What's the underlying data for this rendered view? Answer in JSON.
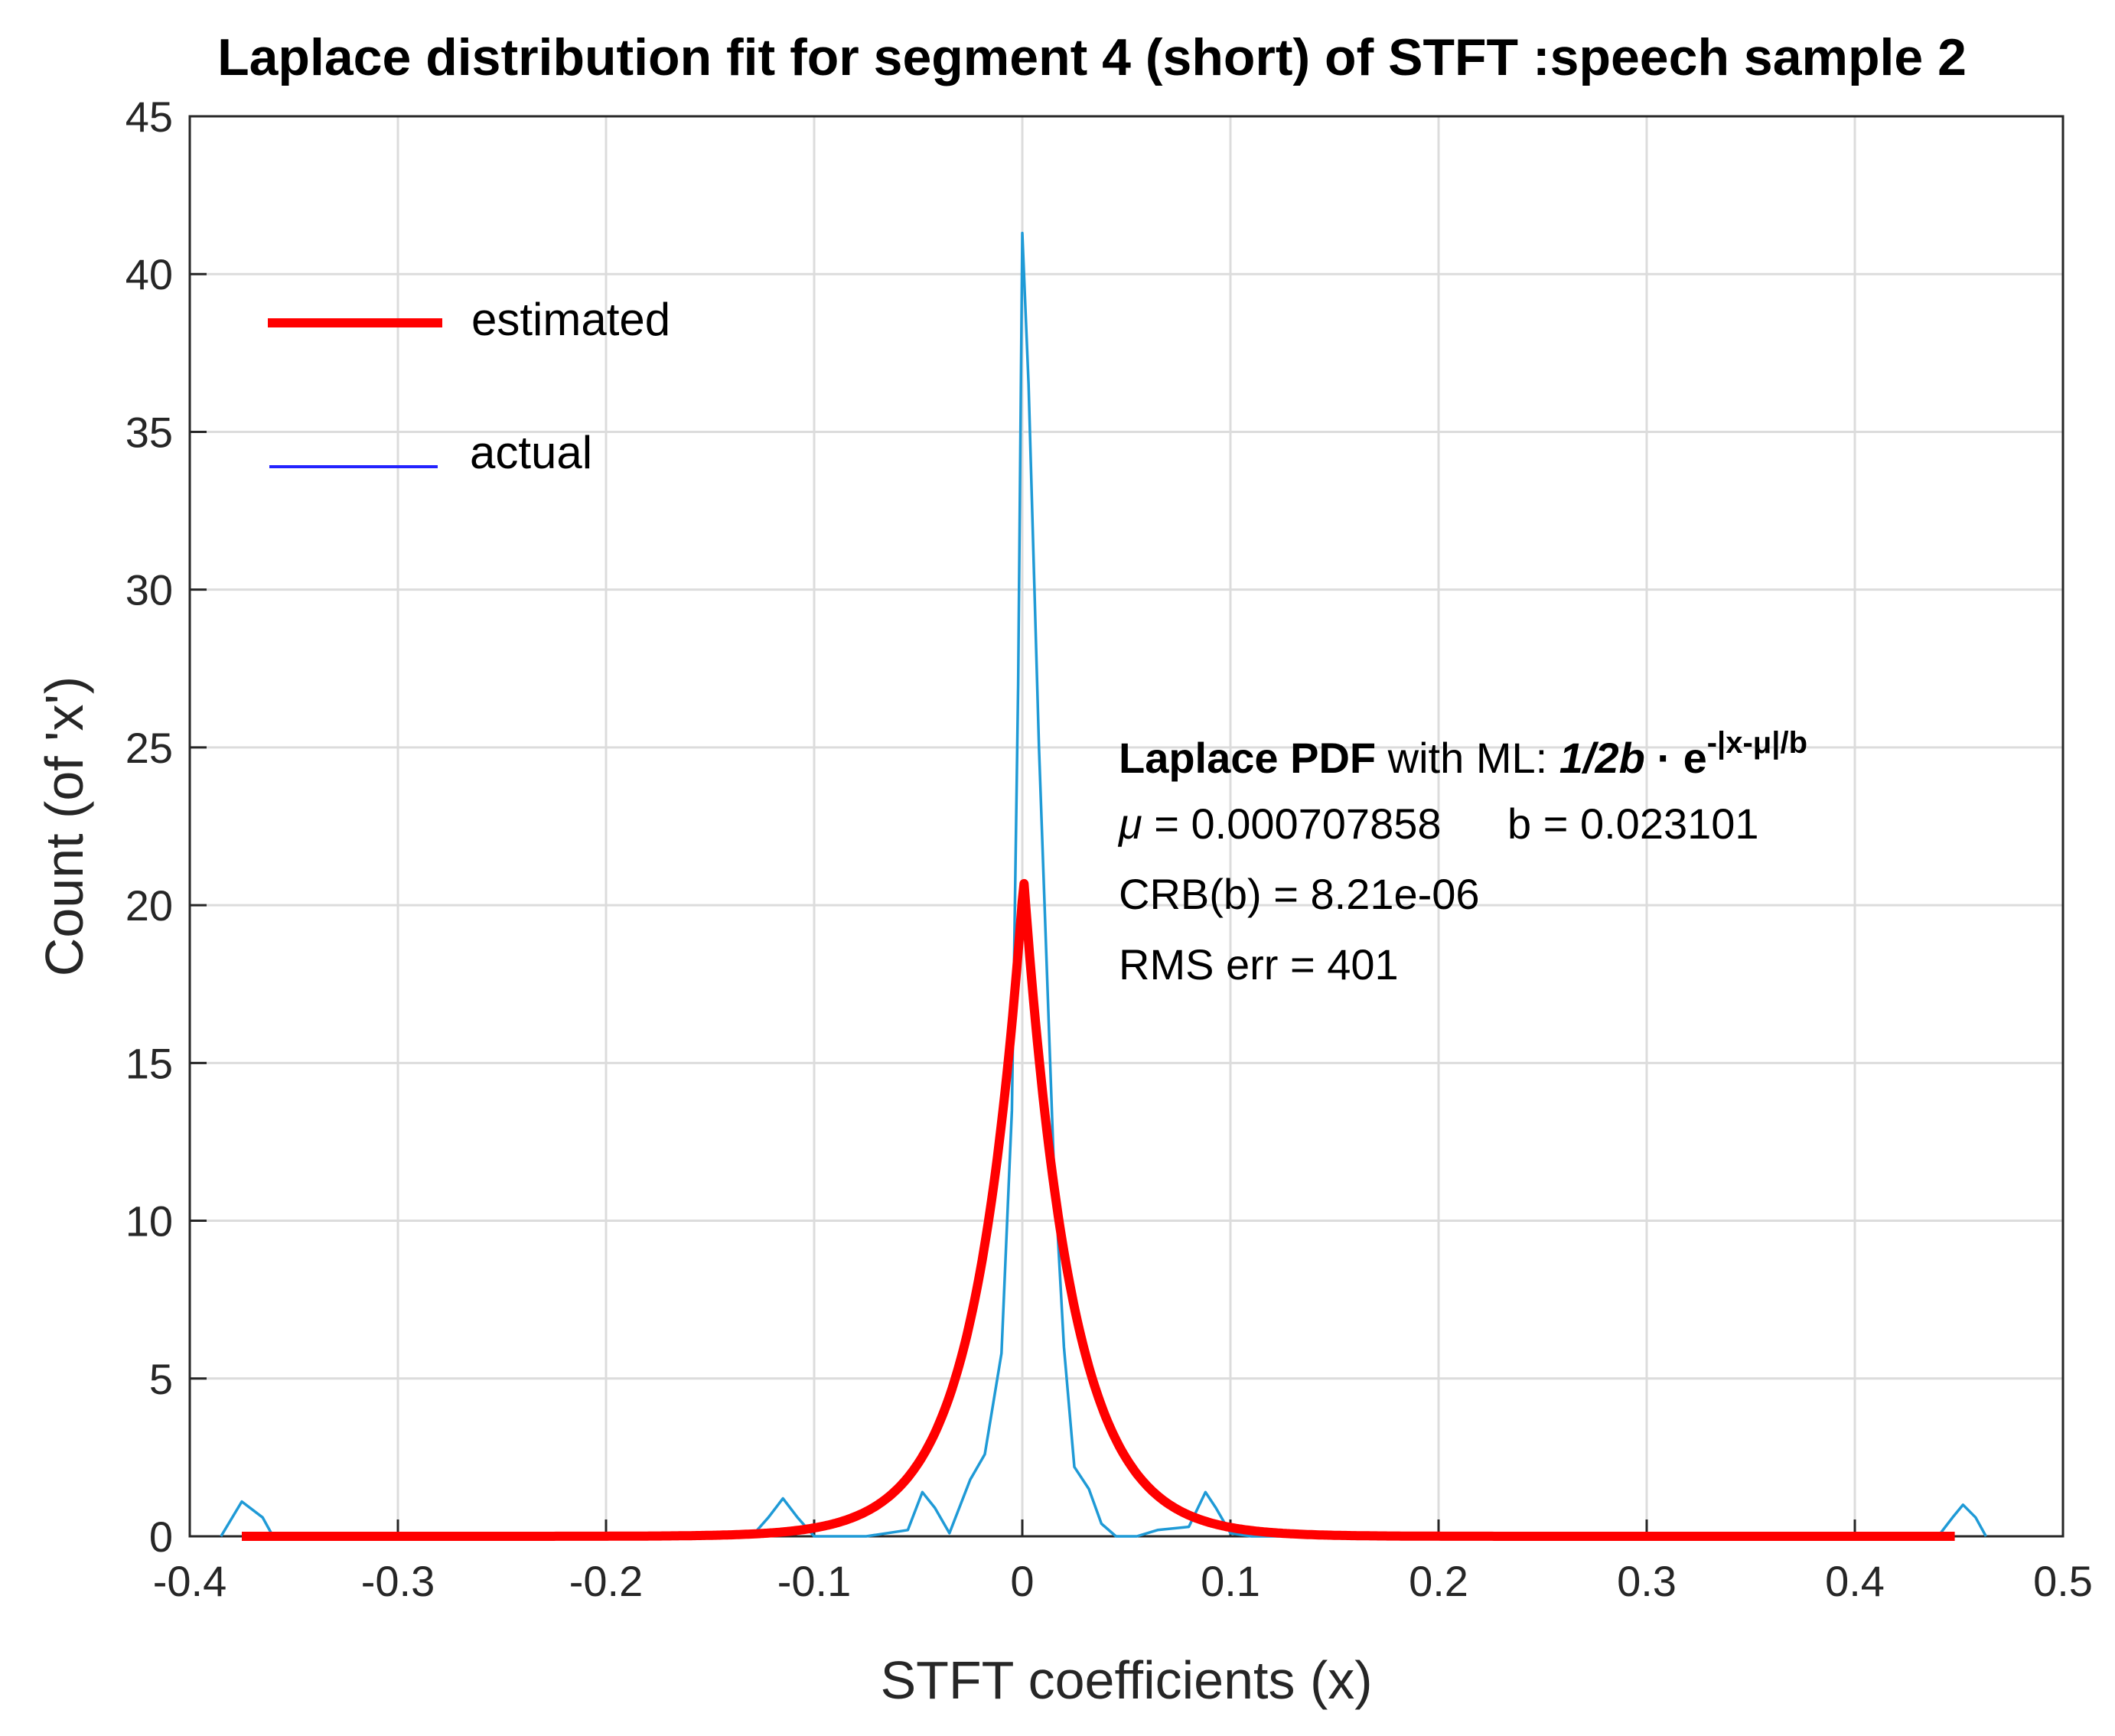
{
  "chart_data": {
    "type": "line",
    "title": "Laplace distribution fit for segment 4 (short) of STFT :speech sample 2",
    "xlabel": "STFT coefficients (x)",
    "ylabel": "Count (of  'x')",
    "xlim": [
      -0.4,
      0.5
    ],
    "ylim": [
      0,
      45
    ],
    "xticks": [
      "-0.4",
      "-0.3",
      "-0.2",
      "-0.1",
      "0",
      "0.1",
      "0.2",
      "0.3",
      "0.4",
      "0.5"
    ],
    "yticks": [
      "0",
      "5",
      "10",
      "15",
      "20",
      "25",
      "30",
      "35",
      "40",
      "45"
    ],
    "grid": true,
    "legend": {
      "position": "top-left",
      "entries": [
        "estimated",
        "actual"
      ]
    },
    "colors": {
      "estimated": "#ff0000",
      "actual": "#1f9ad6",
      "legend_actual": "#2323ff",
      "grid": "#dcdcdc"
    },
    "series": [
      {
        "name": "actual",
        "x": [
          -0.385,
          -0.375,
          -0.365,
          -0.36,
          -0.13,
          -0.122,
          -0.115,
          -0.108,
          -0.1,
          -0.09,
          -0.075,
          -0.055,
          -0.048,
          -0.042,
          -0.035,
          -0.025,
          -0.018,
          -0.01,
          -0.005,
          -0.002,
          0.0,
          0.003,
          0.008,
          0.015,
          0.02,
          0.025,
          0.032,
          0.038,
          0.045,
          0.055,
          0.065,
          0.08,
          0.088,
          0.093,
          0.1,
          0.11,
          0.44,
          0.447,
          0.452,
          0.458,
          0.463
        ],
        "y": [
          0.0,
          1.1,
          0.6,
          0.0,
          0.0,
          0.6,
          1.2,
          0.6,
          0.0,
          0.0,
          0.0,
          0.2,
          1.4,
          0.9,
          0.1,
          1.8,
          2.6,
          5.8,
          13.5,
          27.0,
          41.3,
          36.5,
          25.0,
          12.0,
          6.0,
          2.2,
          1.5,
          0.4,
          0.0,
          0.0,
          0.2,
          0.3,
          1.4,
          0.9,
          0.1,
          0.0,
          0.0,
          0.6,
          1.0,
          0.6,
          0.0
        ]
      },
      {
        "name": "estimated",
        "curve": "laplace",
        "x_range": [
          -0.375,
          0.448
        ],
        "mu": 0.000707858,
        "b": 0.023101,
        "peak": 20.8
      }
    ],
    "annotation": {
      "line1_bold": "Laplace PDF",
      "line1_text": " with ML:  ",
      "line1_formula": "1/2b",
      "line1_dot": " · ",
      "line1_e": "e",
      "line1_exp": "-|x-μ|/b",
      "line2_mu_sym": "μ",
      "line2_mu": " = 0.000707858",
      "line2_b": "b = 0.023101",
      "line3": "CRB(b) = 8.21e-06",
      "line4": "RMS err = 401"
    }
  }
}
